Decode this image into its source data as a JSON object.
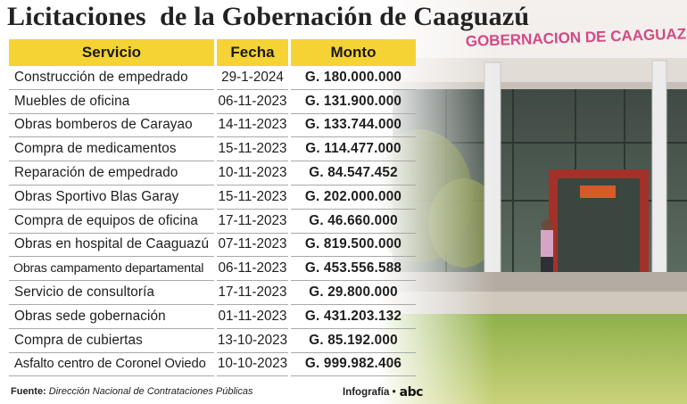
{
  "title": "Licitaciones  de la Gobernación de Caaguazú",
  "building_sign": "GOBERNACION DE CAAGUAZU",
  "table": {
    "headers": [
      "Servicio",
      "Fecha",
      "Monto"
    ],
    "rows": [
      [
        "Construcción de empedrado",
        "29-1-2024",
        "G. 180.000.000"
      ],
      [
        "Muebles de oficina",
        "06-11-2023",
        "G. 131.900.000"
      ],
      [
        "Obras bomberos de Carayao",
        "14-11-2023",
        "G. 133.744.000"
      ],
      [
        "Compra de medicamentos",
        "15-11-2023",
        "G. 114.477.000"
      ],
      [
        "Reparación de empedrado",
        "10-11-2023",
        "G. 84.547.452"
      ],
      [
        "Obras Sportivo Blas Garay",
        "15-11-2023",
        "G. 202.000.000"
      ],
      [
        "Compra de equipos de oficina",
        "17-11-2023",
        "G. 46.660.000"
      ],
      [
        "Obras en hospital de Caaguazú",
        "07-11-2023",
        "G. 819.500.000"
      ],
      [
        "Obras campamento departamental",
        "06-11-2023",
        "G. 453.556.588"
      ],
      [
        "Servicio de consultoría",
        "17-11-2023",
        "G. 29.800.000"
      ],
      [
        "Obras sede gobernación",
        "01-11-2023",
        "G. 431.203.132"
      ],
      [
        "Compra de cubiertas",
        "13-10-2023",
        "G. 85.192.000"
      ],
      [
        "Asfalto centro de Coronel Oviedo",
        "10-10-2023",
        "G. 999.982.406"
      ]
    ]
  },
  "footer": {
    "source_label": "Fuente:",
    "source_text": "Dirección Nacional de Contrataciones Públicas",
    "credit_label": "Infografía •",
    "logo_text": "abc"
  }
}
